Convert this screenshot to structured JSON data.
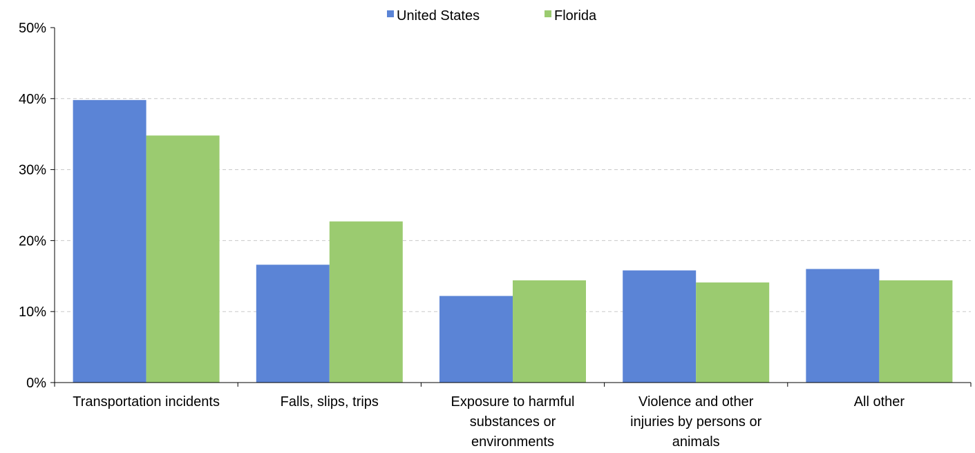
{
  "chart_data": {
    "type": "bar",
    "categories": [
      "Transportation incidents",
      "Falls, slips, trips",
      "Exposure to harmful substances or environments",
      "Violence and other injuries by persons or animals",
      "All other"
    ],
    "category_lines": [
      [
        "Transportation incidents"
      ],
      [
        "Falls, slips, trips"
      ],
      [
        "Exposure to harmful",
        "substances or",
        "environments"
      ],
      [
        "Violence and other",
        "injuries by persons or",
        "animals"
      ],
      [
        "All other"
      ]
    ],
    "series": [
      {
        "name": "United States",
        "color": "#5b84d6",
        "values": [
          39.8,
          16.6,
          12.2,
          15.8,
          16.0
        ]
      },
      {
        "name": "Florida",
        "color": "#9bcb70",
        "values": [
          34.8,
          22.7,
          14.4,
          14.1,
          14.4
        ]
      }
    ],
    "yticks": [
      "0%",
      "10%",
      "20%",
      "30%",
      "40%",
      "50%"
    ],
    "ylim": [
      0,
      50
    ],
    "ytick_values": [
      0,
      10,
      20,
      30,
      40,
      50
    ],
    "grid": true,
    "legend_position": "top-center",
    "title": "",
    "xlabel": "",
    "ylabel": ""
  }
}
